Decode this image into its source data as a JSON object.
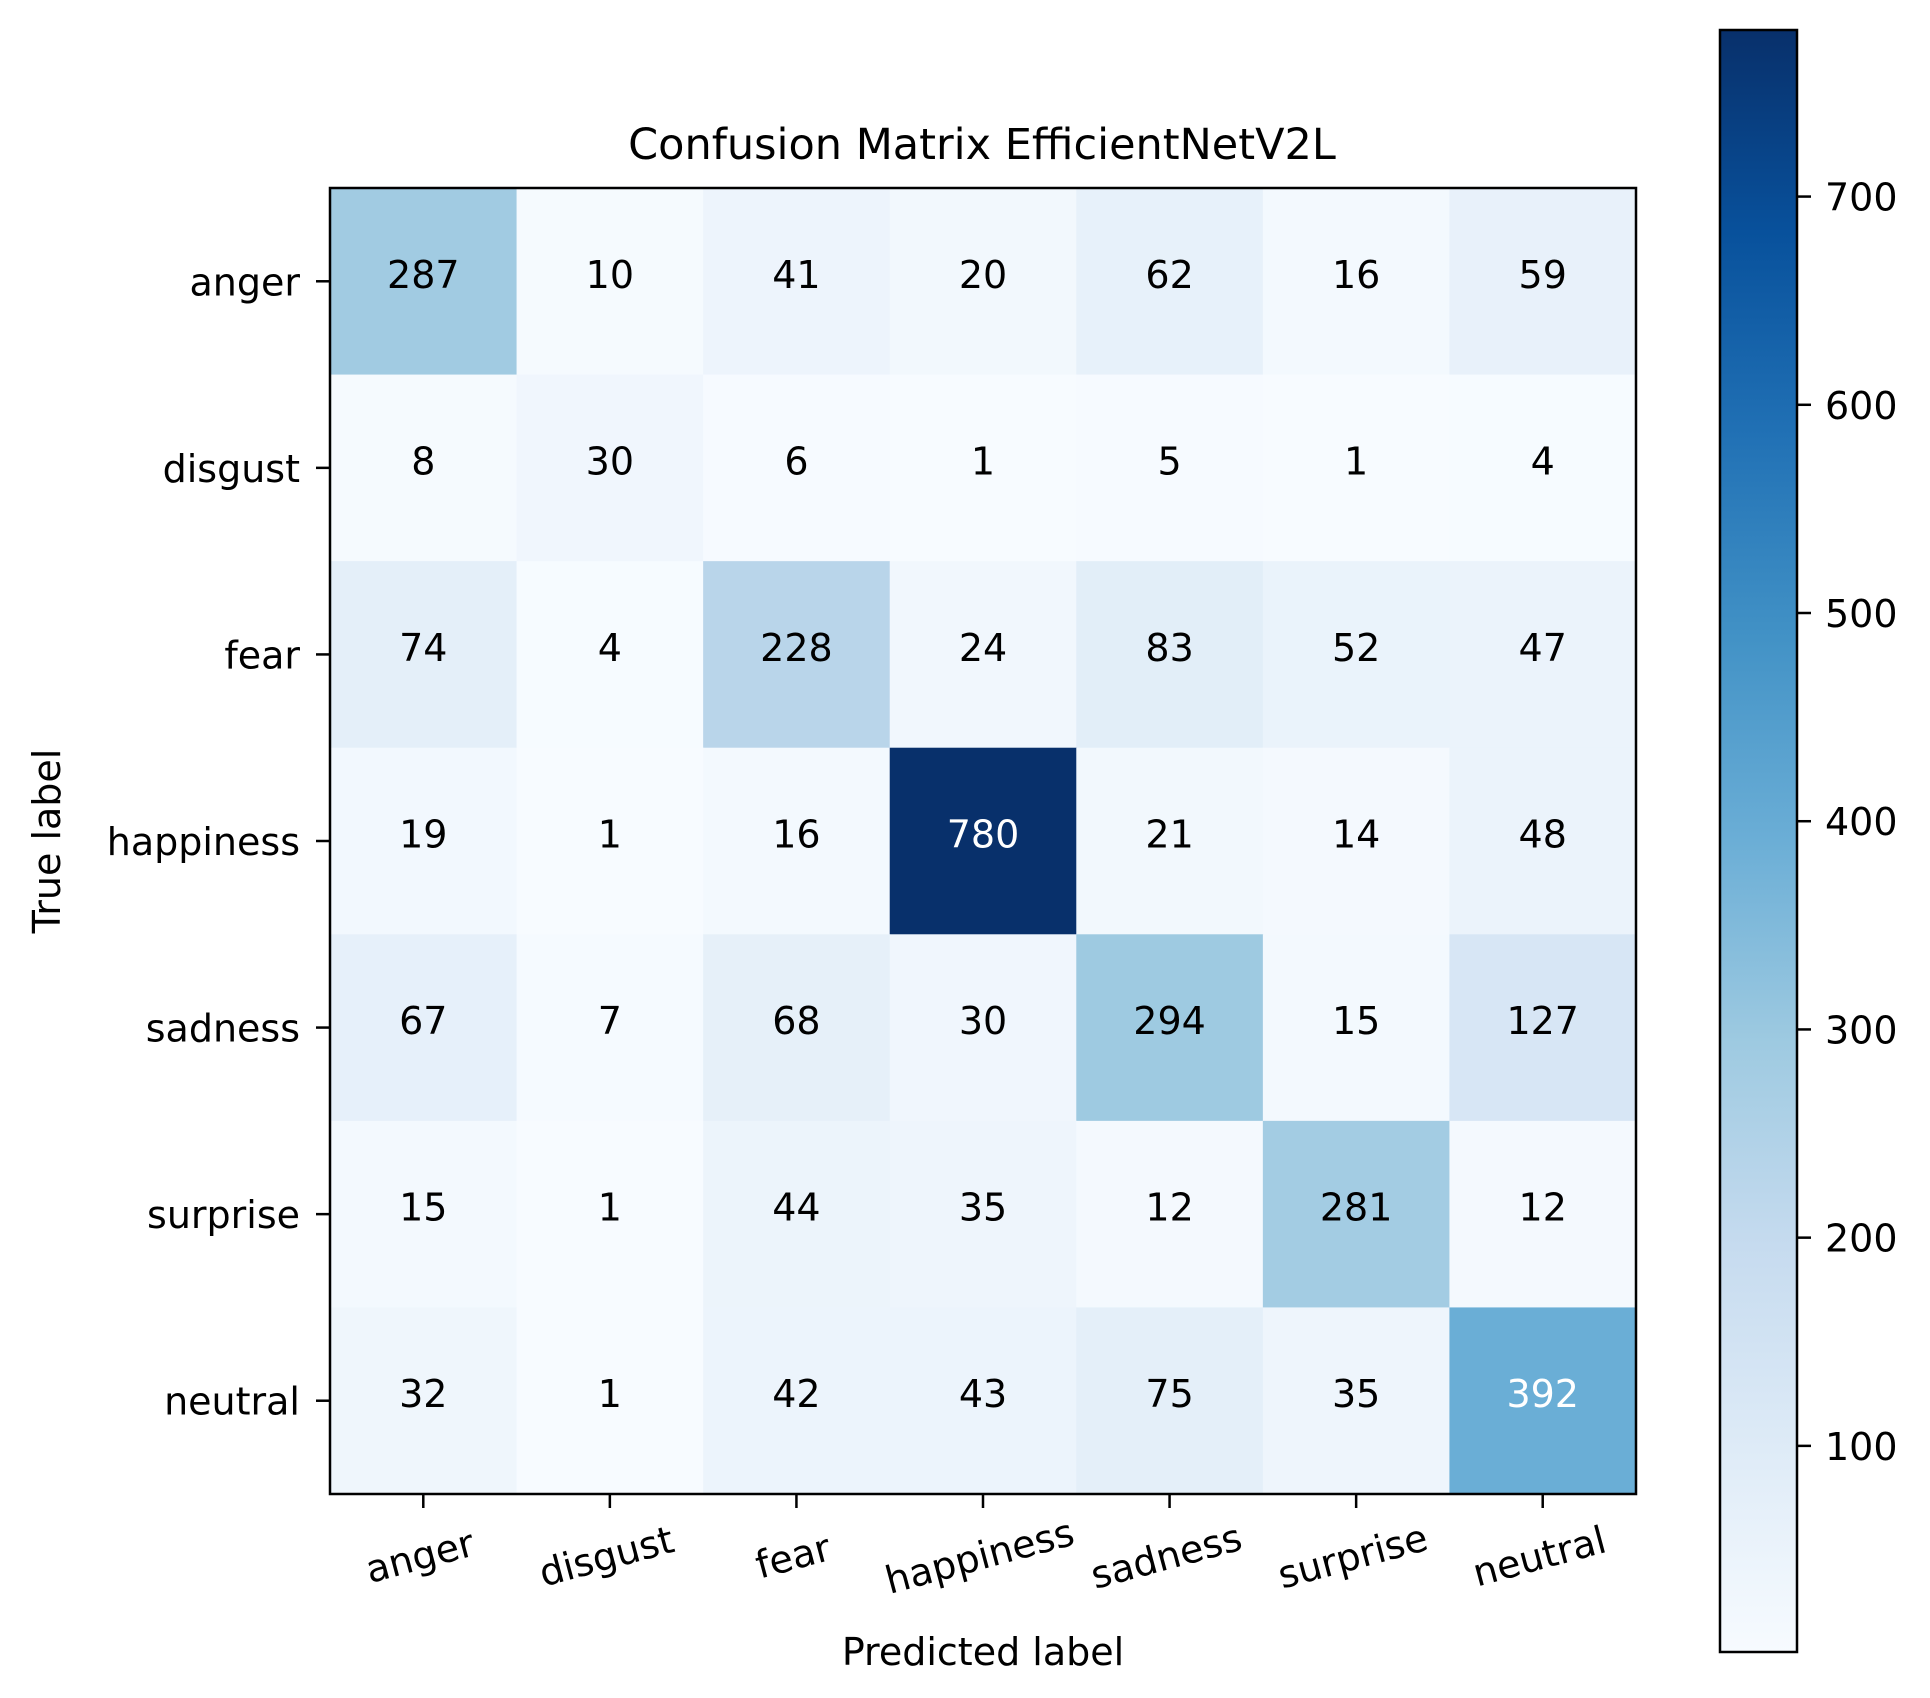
{
  "chart_data": {
    "type": "heatmap",
    "title": "Confusion Matrix EfficientNetV2L",
    "xlabel": "Predicted label",
    "ylabel": "True label",
    "x_categories": [
      "anger",
      "disgust",
      "fear",
      "happiness",
      "sadness",
      "surprise",
      "neutral"
    ],
    "y_categories": [
      "anger",
      "disgust",
      "fear",
      "happiness",
      "sadness",
      "surprise",
      "neutral"
    ],
    "matrix": [
      [
        287,
        10,
        41,
        20,
        62,
        16,
        59
      ],
      [
        8,
        30,
        6,
        1,
        5,
        1,
        4
      ],
      [
        74,
        4,
        228,
        24,
        83,
        52,
        47
      ],
      [
        19,
        1,
        16,
        780,
        21,
        14,
        48
      ],
      [
        67,
        7,
        68,
        30,
        294,
        15,
        127
      ],
      [
        15,
        1,
        44,
        35,
        12,
        281,
        12
      ],
      [
        32,
        1,
        42,
        43,
        75,
        35,
        392
      ]
    ],
    "colormap": "Blues",
    "colorbar": {
      "range": [
        1,
        780
      ],
      "ticks": [
        100,
        200,
        300,
        400,
        500,
        600,
        700
      ]
    }
  }
}
